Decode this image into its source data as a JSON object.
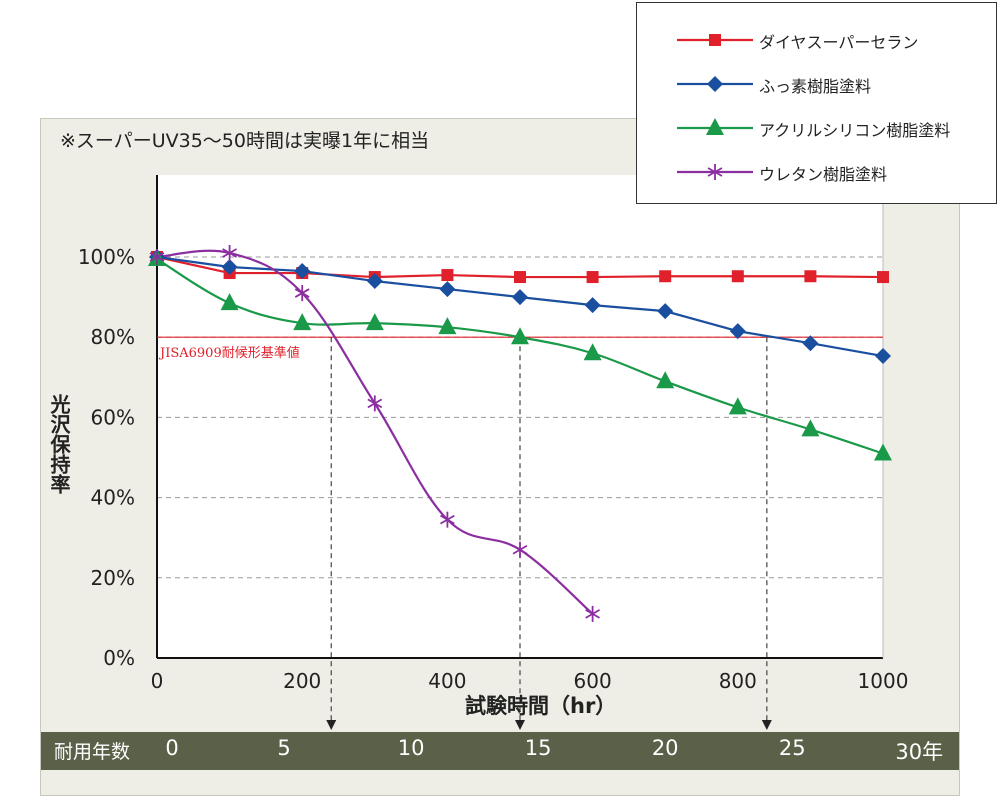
{
  "note": "※スーパーUV35〜50時間は実曝1年に相当",
  "chart_data": {
    "type": "line",
    "xlabel": "試験時間（hr）",
    "ylabel": "光沢保持率",
    "xlim": [
      0,
      1000
    ],
    "ylim": [
      0,
      100
    ],
    "x_ticks": [
      "0",
      "200",
      "400",
      "600",
      "800",
      "1000"
    ],
    "y_ticks": [
      "0%",
      "20%",
      "40%",
      "60%",
      "80%",
      "100%"
    ],
    "grid": "horizontal dashed",
    "legend": "top-right",
    "series": [
      {
        "name": "ダイヤスーパーセラン",
        "color": "#e0202a",
        "marker": "square",
        "x": [
          0,
          100,
          200,
          300,
          400,
          500,
          600,
          700,
          800,
          900,
          1000
        ],
        "values": [
          100,
          96,
          96,
          95,
          95.5,
          95,
          95,
          95.2,
          95.2,
          95.2,
          95
        ]
      },
      {
        "name": "ふっ素樹脂塗料",
        "color": "#1a4fa0",
        "marker": "diamond",
        "x": [
          0,
          100,
          200,
          300,
          400,
          500,
          600,
          700,
          800,
          900,
          1000
        ],
        "values": [
          100,
          97.5,
          96.5,
          94,
          92,
          90,
          88,
          86.5,
          81.5,
          78.5,
          75.3
        ]
      },
      {
        "name": "アクリルシリコン樹脂塗料",
        "color": "#1a9a48",
        "marker": "triangle",
        "x": [
          0,
          100,
          200,
          300,
          400,
          500,
          600,
          700,
          800,
          900,
          1000
        ],
        "values": [
          99.5,
          88.5,
          83.5,
          83.5,
          82.5,
          80,
          76,
          69,
          62.5,
          57,
          51
        ]
      },
      {
        "name": "ウレタン樹脂塗料",
        "color": "#8b2ea0",
        "marker": "asterisk",
        "x": [
          0,
          100,
          200,
          300,
          400,
          500,
          600
        ],
        "values": [
          100,
          101,
          91,
          63.5,
          34.5,
          27,
          11
        ]
      }
    ],
    "reference_line": {
      "value": 80,
      "label": "JISA6909耐候形基準値",
      "color": "#e0202a"
    },
    "guide_arrows": [
      {
        "x": 240,
        "from_value": 80
      },
      {
        "x": 500,
        "from_value": 80
      },
      {
        "x": 840,
        "from_value": 80
      }
    ],
    "years_axis": {
      "title": "耐用年数",
      "labels": [
        "0",
        "5",
        "10",
        "15",
        "20",
        "25",
        "30年"
      ],
      "hours": [
        0,
        175,
        350,
        525,
        700,
        875,
        1050
      ]
    }
  }
}
